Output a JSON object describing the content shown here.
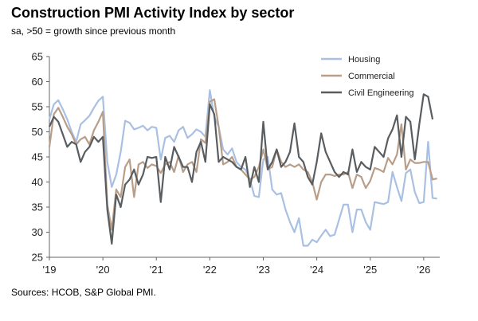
{
  "title": "Construction PMI Activity Index by sector",
  "subtitle": "sa, >50 = growth since previous month",
  "source": "Sources: HCOB, S&P Global PMI.",
  "chart_data": {
    "type": "line",
    "title": "Construction PMI Activity Index by sector",
    "xlabel": "",
    "ylabel": "",
    "ylim": [
      25,
      65
    ],
    "yticks": [
      25,
      30,
      35,
      40,
      45,
      50,
      55,
      60,
      65
    ],
    "xlim": [
      2019,
      2026.3
    ],
    "xticks": [
      {
        "value": 2019,
        "label": "'19"
      },
      {
        "value": 2020,
        "label": "'20"
      },
      {
        "value": 2021,
        "label": "'21"
      },
      {
        "value": 2022,
        "label": "'22"
      },
      {
        "value": 2023,
        "label": "'23"
      },
      {
        "value": 2024,
        "label": "'24"
      },
      {
        "value": 2025,
        "label": "'25"
      },
      {
        "value": 2026,
        "label": "'26"
      }
    ],
    "grid": false,
    "legend_position": "top-right",
    "start": 2019,
    "step": 0.08333,
    "series": [
      {
        "name": "Housing",
        "color": "#a9c0e3",
        "values": [
          52.5,
          55.5,
          56.3,
          54.5,
          52.5,
          50,
          48,
          51.5,
          52.3,
          53.2,
          54.8,
          56.2,
          57,
          44,
          39,
          41.5,
          46,
          52.2,
          51.8,
          50.5,
          50.8,
          51.2,
          50.3,
          51,
          50.8,
          44.5,
          48.8,
          49.2,
          48,
          50.3,
          51,
          48.8,
          49.5,
          50.5,
          50,
          49,
          58.3,
          53,
          51,
          46.5,
          45.5,
          46.7,
          44,
          43,
          42.5,
          40.5,
          37.2,
          37,
          44.5,
          45,
          38.5,
          37.5,
          37.8,
          34.5,
          32,
          30,
          32.8,
          27.3,
          27.3,
          28.5,
          28,
          29.3,
          30.5,
          29.2,
          29.5,
          32.5,
          35.5,
          35.5,
          30,
          34.5,
          34.5,
          32,
          30.5,
          36,
          35.8,
          35.6,
          36,
          42,
          39,
          36.2,
          41.8,
          42.5,
          38,
          35.8,
          36,
          48,
          36.8,
          36.7
        ]
      },
      {
        "name": "Commercial",
        "color": "#b89e89",
        "values": [
          47,
          53.5,
          54.8,
          53,
          51,
          49.5,
          47.5,
          48.5,
          49,
          47.5,
          50.3,
          52,
          54,
          35.5,
          30.5,
          38.5,
          37,
          43,
          44.5,
          37,
          43.5,
          44,
          42.8,
          43.5,
          43.2,
          41.8,
          43.5,
          44,
          42,
          45.2,
          42,
          43.5,
          44,
          42,
          48.5,
          47.8,
          56,
          56.5,
          51,
          43.5,
          44,
          45,
          43,
          42.5,
          41.5,
          40.5,
          41,
          43,
          46.5,
          42.5,
          43,
          46.5,
          44,
          43,
          43.5,
          43,
          43.5,
          42.5,
          42,
          40,
          36.5,
          40,
          41.5,
          41.5,
          41.2,
          41.5,
          41.5,
          42,
          38.8,
          41.5,
          41,
          38.8,
          40.2,
          42.8,
          42.5,
          42,
          44.8,
          43.5,
          45.5,
          51.5,
          42.5,
          44.5,
          43.8,
          43.8,
          44,
          44,
          40.5,
          40.7
        ]
      },
      {
        "name": "Civil Engineering",
        "color": "#595d60",
        "values": [
          51,
          53,
          52,
          49.5,
          47,
          48,
          47.5,
          44,
          46,
          47,
          49,
          48,
          49,
          34.5,
          27.7,
          37.5,
          35,
          39.5,
          40.5,
          42.5,
          39.5,
          41.5,
          45,
          44.8,
          45,
          36,
          45,
          42.5,
          47,
          45,
          43,
          43,
          40,
          46,
          48,
          44,
          55.5,
          53.5,
          44,
          45,
          44.5,
          44,
          43,
          42.5,
          45,
          39,
          43,
          40,
          52,
          42.5,
          44,
          46.5,
          43,
          44,
          46,
          51.7,
          45,
          44,
          41,
          39.5,
          44,
          49.7,
          46,
          44,
          42,
          41,
          42,
          41.5,
          46.5,
          42,
          44,
          43,
          42.5,
          47,
          46,
          45,
          48.7,
          50.5,
          53.3,
          45,
          53,
          52,
          44.5,
          51.5,
          57.5,
          57,
          52.5
        ]
      }
    ]
  }
}
